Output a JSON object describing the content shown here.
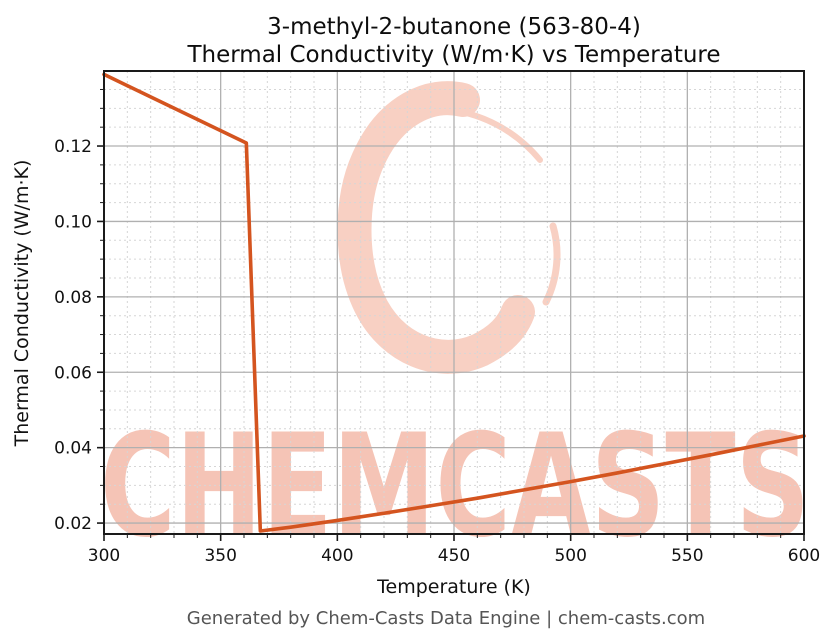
{
  "header": {
    "title_line1": "3-methyl-2-butanone (563-80-4)",
    "title_line2": "Thermal Conductivity (W/m·K) vs Temperature"
  },
  "watermark": {
    "text": "CHEMCASTS",
    "logo_icon": "chemcasts-c-swoosh"
  },
  "footer": {
    "text": "Generated by Chem-Casts Data Engine | chem-casts.com"
  },
  "style": {
    "line_color": "#d4541f",
    "watermark_text_color": "#f5c4b6",
    "watermark_logo_color": "#f8d0c3",
    "footer_color": "#555555"
  },
  "chart_data": {
    "type": "line",
    "title": "3-methyl-2-butanone (563-80-4)\nThermal Conductivity (W/m·K) vs Temperature",
    "xlabel": "Temperature (K)",
    "ylabel": "Thermal Conductivity (W/m·K)",
    "xlim": [
      300,
      600
    ],
    "ylim": [
      0.0171,
      0.1399
    ],
    "x_major_ticks": [
      300,
      350,
      400,
      450,
      500,
      550,
      600
    ],
    "x_tick_labels": [
      "300",
      "350",
      "400",
      "450",
      "500",
      "550",
      "600"
    ],
    "x_minor_step": 10,
    "y_major_ticks": [
      0.02,
      0.04,
      0.06,
      0.08,
      0.1,
      0.12
    ],
    "y_tick_labels": [
      "0.02",
      "0.04",
      "0.06",
      "0.08",
      "0.10",
      "0.12"
    ],
    "y_minor_step": 0.005,
    "grid": true,
    "legend": "none",
    "line_width": 3.6,
    "series": [
      {
        "name": "thermal-conductivity",
        "points": [
          [
            300,
            0.139
          ],
          [
            361,
            0.1208
          ],
          [
            367,
            0.0179
          ],
          [
            380,
            0.0189
          ],
          [
            400,
            0.0207
          ],
          [
            420,
            0.0226
          ],
          [
            440,
            0.0246
          ],
          [
            460,
            0.0266
          ],
          [
            480,
            0.0288
          ],
          [
            500,
            0.031
          ],
          [
            520,
            0.0333
          ],
          [
            540,
            0.0357
          ],
          [
            560,
            0.0381
          ],
          [
            580,
            0.0406
          ],
          [
            600,
            0.0431
          ]
        ]
      }
    ]
  }
}
